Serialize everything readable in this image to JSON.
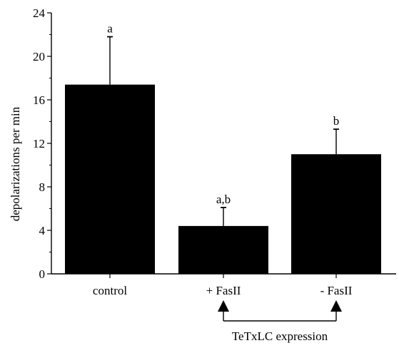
{
  "chart_data": {
    "type": "bar",
    "categories": [
      "control",
      "+ FasII",
      "- FasII"
    ],
    "values": [
      17.4,
      4.4,
      11.0
    ],
    "error_upper": [
      21.8,
      6.1,
      13.3
    ],
    "significance_labels": [
      "a",
      "a,b",
      "b"
    ],
    "ylabel": "depolarizations per min",
    "xlabel": "",
    "title": "",
    "ylim": [
      0,
      24
    ],
    "yticks": [
      0,
      4,
      8,
      12,
      16,
      20,
      24
    ],
    "bar_color": "#000000",
    "grid": false,
    "legend": "none",
    "annotation": {
      "text": "TeTxLC expression",
      "connects": [
        "+ FasII",
        "- FasII"
      ]
    }
  }
}
